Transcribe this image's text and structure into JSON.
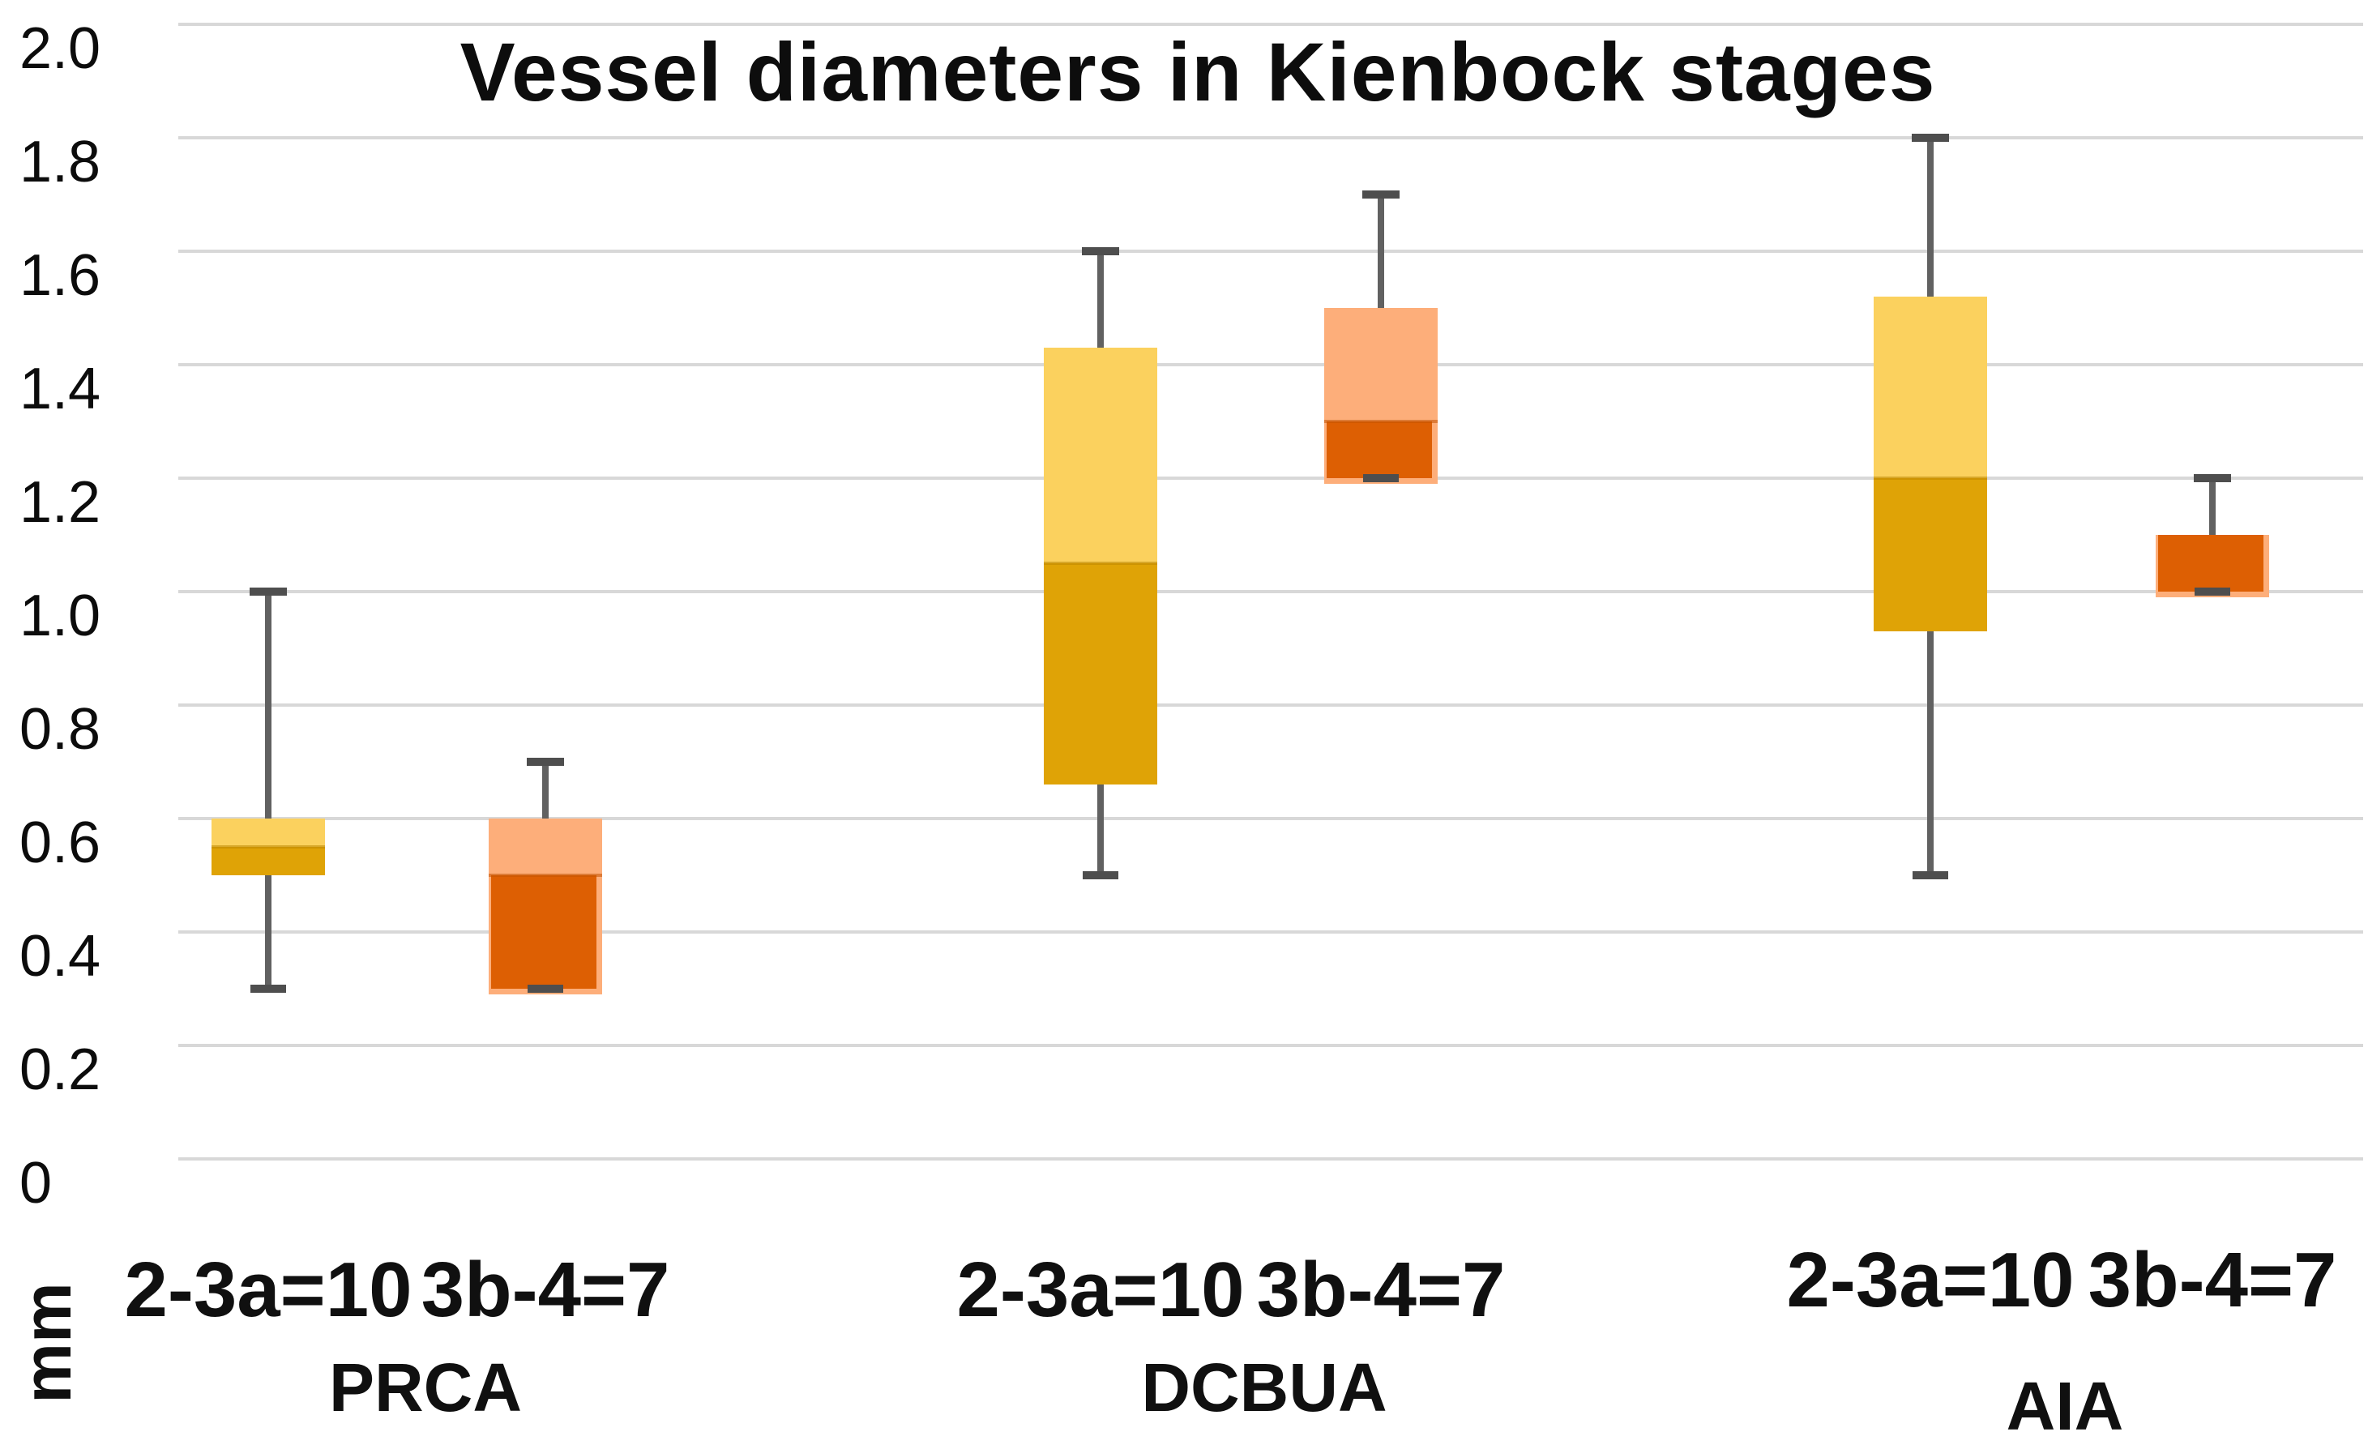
{
  "title": "Vessel diameters in Kienbock stages",
  "y_axis": {
    "unit_label": "mm",
    "tick_labels": [
      "2.0",
      "1.8",
      "1.6",
      "1.4",
      "1.2",
      "1.0",
      "0.8",
      "0.6",
      "0.4",
      "0.2",
      "0"
    ],
    "min": 0,
    "max": 2.0,
    "tick_step": 0.2
  },
  "colors": {
    "background": "#ffffff",
    "gridline": "#d8d8d8",
    "whisker": "#616161",
    "whisker_cap": "#4e4e4e",
    "gold_upper": "#fbd15e",
    "gold_lower": "#dfa306",
    "gold_divider": "#bc8600",
    "orange_upper": "#fdae7a",
    "orange_lower": "#dd5f03",
    "orange_divider": "#c25200",
    "title_text": "#0d0d0d",
    "label_text": "#101010"
  },
  "chart_data": {
    "type": "boxplot",
    "title": "Vessel diameters in Kienbock stages",
    "ylabel": "mm",
    "ylim": [
      0,
      2.0
    ],
    "ytick_interval": 0.2,
    "ytick_labels": [
      "2.0",
      "1.8",
      "1.6",
      "1.4",
      "1.2",
      "1.0",
      "0.8",
      "0.6",
      "0.4",
      "0.2",
      "0"
    ],
    "grid": true,
    "legend_position": "none",
    "groups": [
      {
        "name": "PRCA",
        "boxes": [
          {
            "label": "2-3a=10",
            "n": 10,
            "min": 0.3,
            "q1": 0.5,
            "median": 0.55,
            "q3": 0.6,
            "max": 1.0,
            "palette": "gold"
          },
          {
            "label": "3b-4=7",
            "n": 7,
            "min": 0.3,
            "q1": 0.3,
            "median": 0.5,
            "q3": 0.6,
            "max": 0.7,
            "palette": "orange"
          }
        ]
      },
      {
        "name": "DCBUA",
        "boxes": [
          {
            "label": "2-3a=10",
            "n": 10,
            "min": 0.5,
            "q1": 0.66,
            "median": 1.05,
            "q3": 1.43,
            "max": 1.6,
            "palette": "gold"
          },
          {
            "label": "3b-4=7",
            "n": 7,
            "min": 1.2,
            "q1": 1.2,
            "median": 1.3,
            "q3": 1.5,
            "max": 1.7,
            "palette": "orange"
          }
        ]
      },
      {
        "name": "AIA",
        "boxes": [
          {
            "label": "2-3a=10",
            "n": 10,
            "min": 0.5,
            "q1": 0.93,
            "median": 1.2,
            "q3": 1.52,
            "max": 1.8,
            "palette": "gold"
          },
          {
            "label": "3b-4=7",
            "n": 7,
            "min": 1.0,
            "q1": 1.0,
            "median": 1.1,
            "q3": 1.1,
            "max": 1.2,
            "palette": "orange"
          }
        ]
      }
    ]
  }
}
